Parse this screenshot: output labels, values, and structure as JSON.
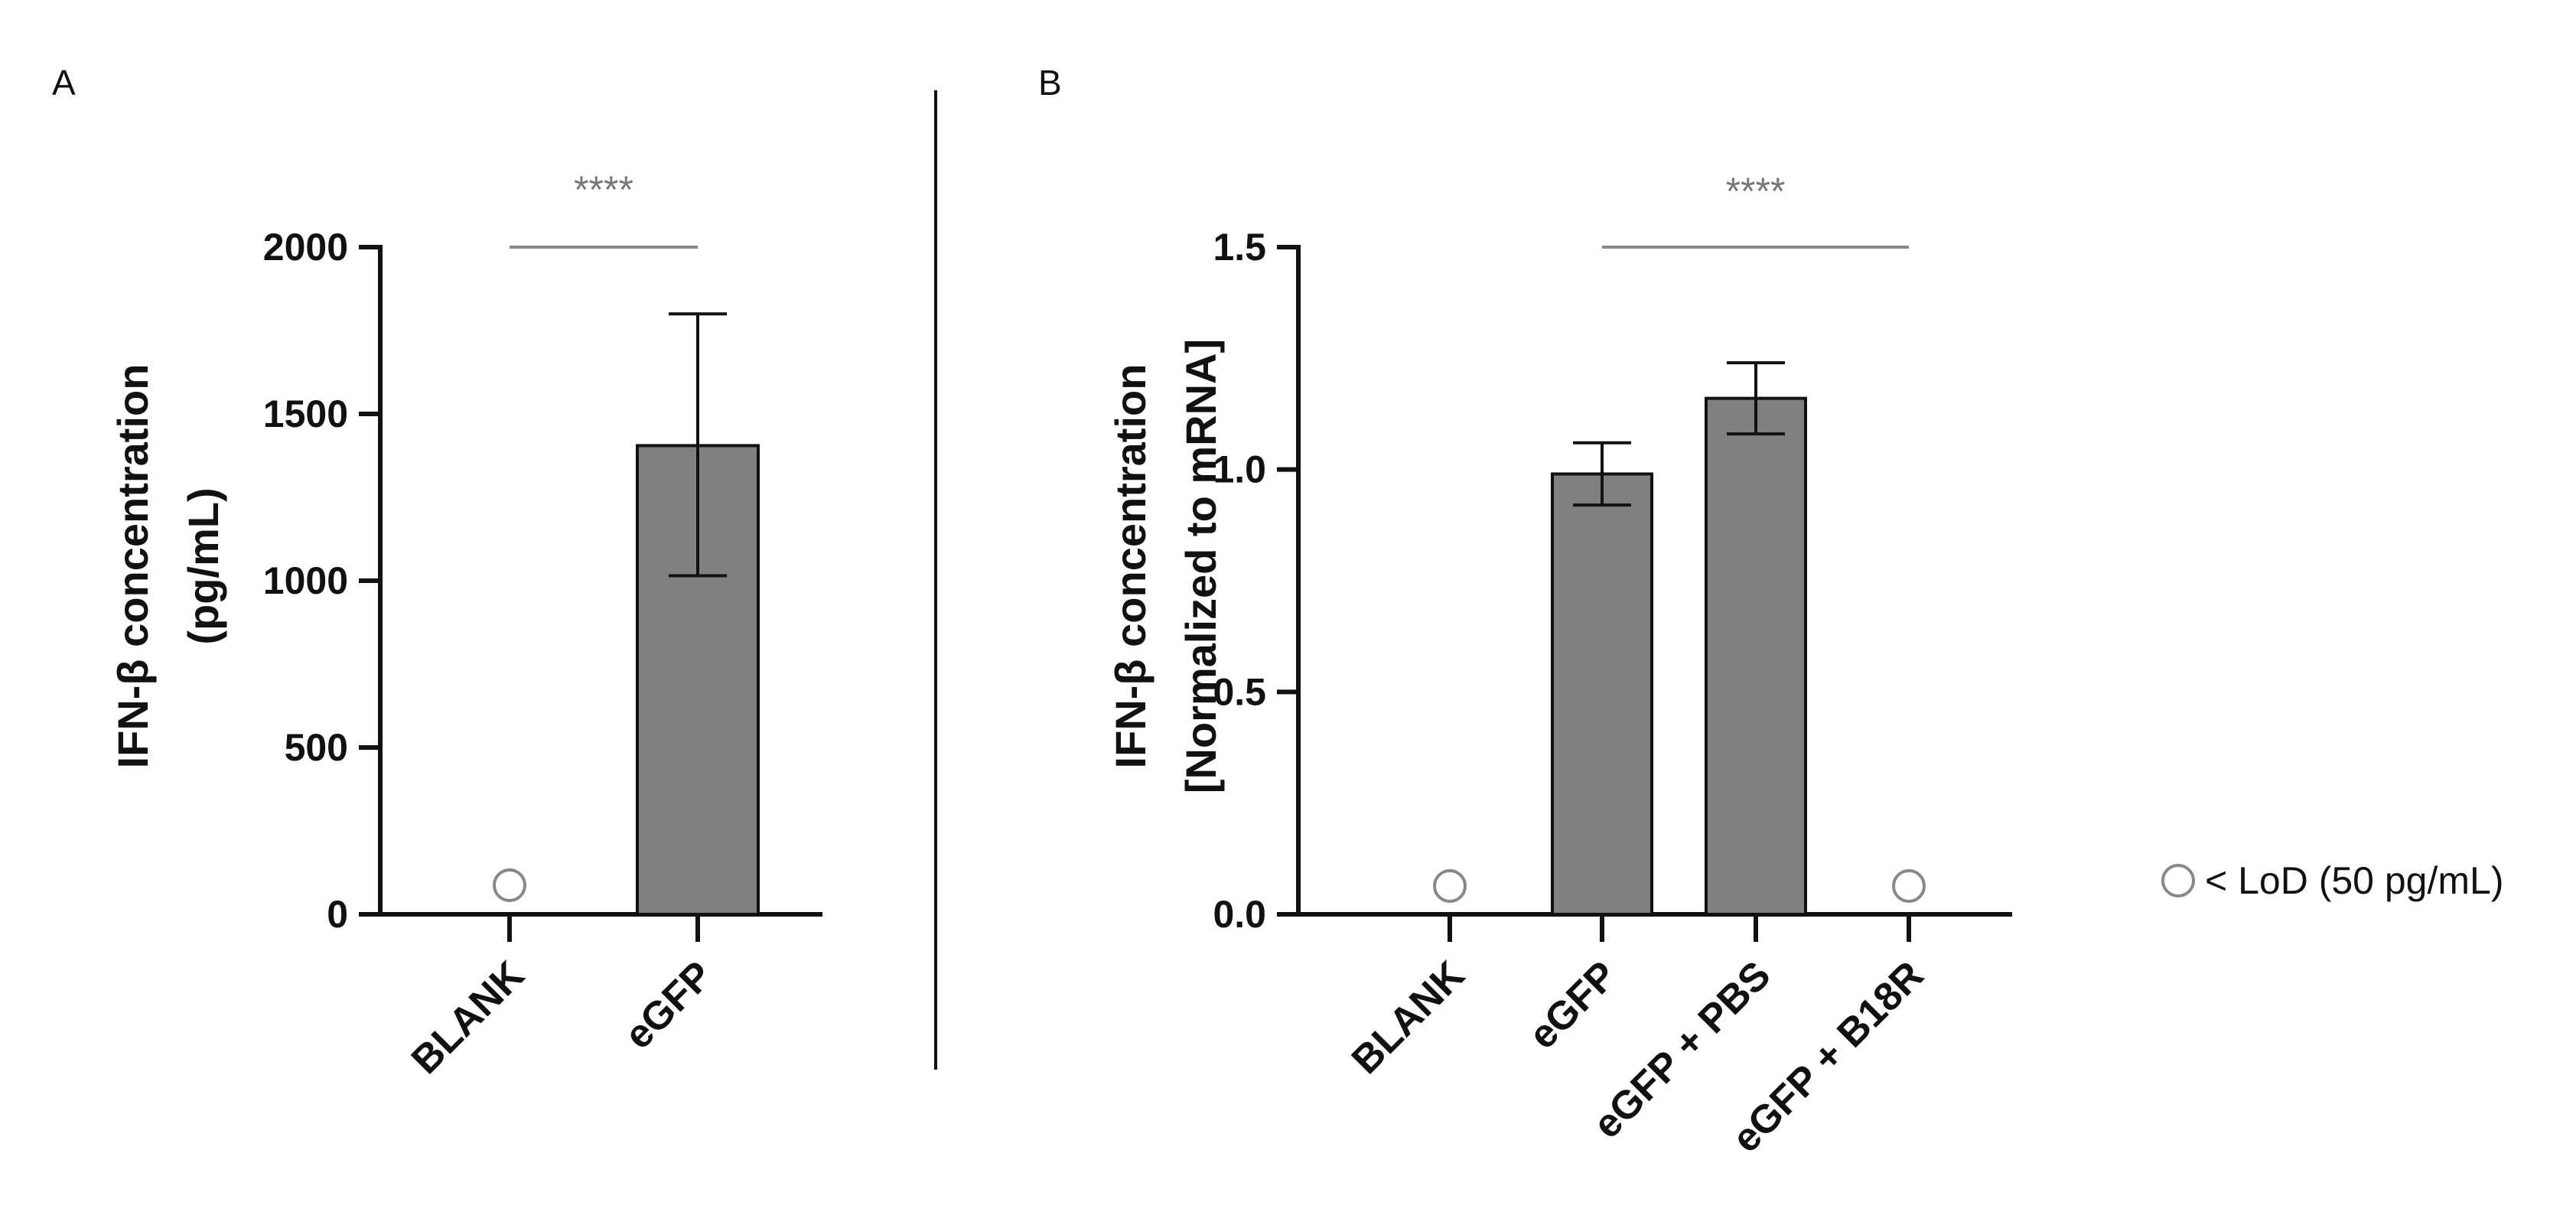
{
  "panels": {
    "a_letter": "A",
    "b_letter": "B"
  },
  "legend": {
    "label": "< LoD (50 pg/mL)"
  },
  "chart_data": [
    {
      "type": "bar",
      "panel": "A",
      "categories": [
        "BLANK",
        "eGFP"
      ],
      "values": [
        null,
        1405
      ],
      "error_low": [
        null,
        1015
      ],
      "error_high": [
        null,
        1800
      ],
      "below_lod": [
        true,
        false
      ],
      "ylabel_line1": "IFN-β concentration",
      "ylabel_line2": "(pg/mL)",
      "ylim": [
        0,
        2000
      ],
      "yticks": [
        0,
        500,
        1000,
        1500,
        2000
      ],
      "ytick_labels": [
        "0",
        "500",
        "1000",
        "1500",
        "2000"
      ],
      "bar_color": "#808080",
      "significance": {
        "from": 0,
        "to": 1,
        "label": "****"
      }
    },
    {
      "type": "bar",
      "panel": "B",
      "categories": [
        "BLANK",
        "eGFP",
        "eGFP + PBS",
        "eGFP + B18R"
      ],
      "values": [
        null,
        0.99,
        1.16,
        null
      ],
      "error_low": [
        null,
        0.92,
        1.08,
        null
      ],
      "error_high": [
        null,
        1.06,
        1.24,
        null
      ],
      "below_lod": [
        true,
        false,
        false,
        true
      ],
      "ylabel_line1": "IFN-β concentration",
      "ylabel_line2": "[Normalized to mRNA]",
      "ylim": [
        0,
        1.5
      ],
      "yticks": [
        0,
        0.5,
        1.0,
        1.5
      ],
      "ytick_labels": [
        "0.0",
        "0.5",
        "1.0",
        "1.5"
      ],
      "bar_color": "#808080",
      "significance": {
        "from": 1,
        "to": 3,
        "label": "****"
      }
    }
  ]
}
